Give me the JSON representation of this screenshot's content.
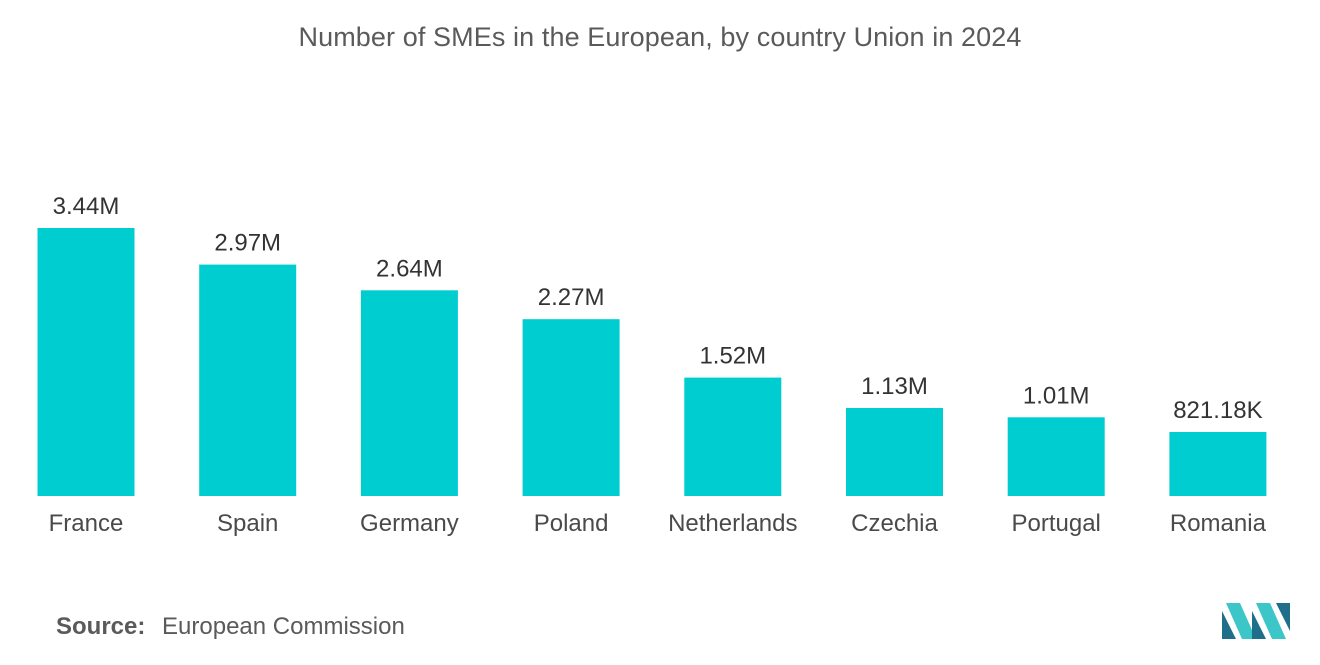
{
  "chart_data": {
    "type": "bar",
    "title": "Number of SMEs in the European, by country Union in 2024",
    "categories": [
      "France",
      "Spain",
      "Germany",
      "Poland",
      "Netherlands",
      "Czechia",
      "Portugal",
      "Romania"
    ],
    "values": [
      3440000,
      2970000,
      2640000,
      2270000,
      1520000,
      1130000,
      1010000,
      821180
    ],
    "data_labels": [
      "3.44M",
      "2.97M",
      "2.64M",
      "2.27M",
      "1.52M",
      "1.13M",
      "1.01M",
      "821.18K"
    ],
    "xlabel": "",
    "ylabel": "",
    "ylim": [
      0,
      3440000
    ],
    "grid": false,
    "bar_color": "#00cdd0"
  },
  "footer": {
    "source_label": "Source:",
    "source_value": "European Commission"
  },
  "logo": {
    "icon": "mordor-intelligence-logo-icon",
    "colors": [
      "#1f6f8b",
      "#3cc6c8"
    ]
  }
}
